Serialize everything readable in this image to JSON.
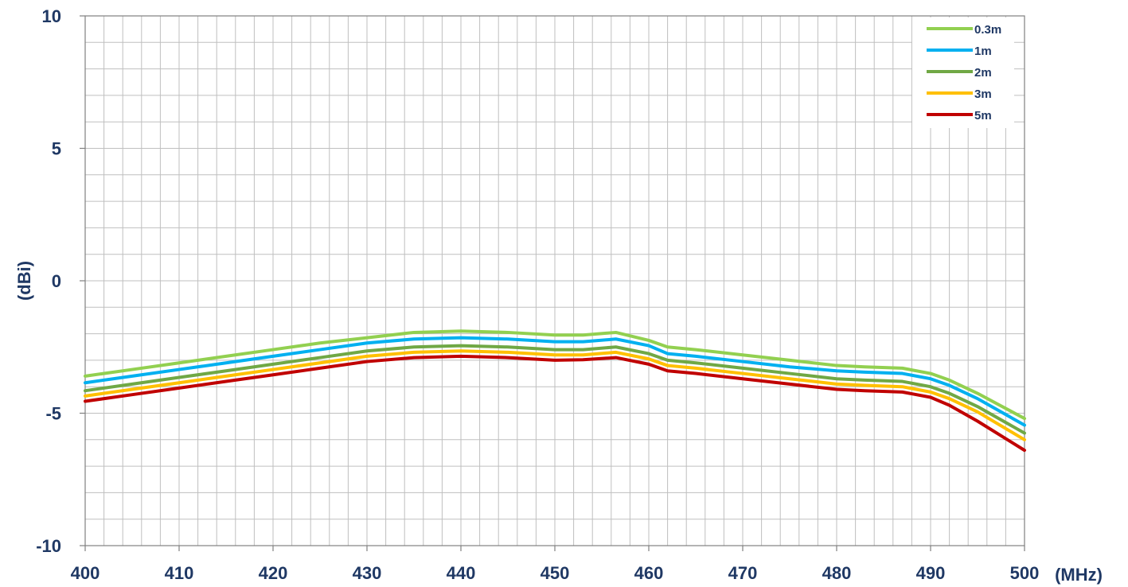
{
  "chart_data": {
    "type": "line",
    "title": "",
    "xlabel": "(MHz)",
    "ylabel": "(dBi)",
    "xlim": [
      400,
      500
    ],
    "ylim": [
      -10,
      10
    ],
    "x_ticks": [
      400,
      410,
      420,
      430,
      440,
      450,
      460,
      470,
      480,
      490,
      500
    ],
    "y_ticks": [
      10,
      5,
      0,
      -5,
      -10
    ],
    "y_tick_labels": [
      "10",
      "5",
      "0",
      "-5",
      "-10"
    ],
    "grid": true,
    "legend_position": "top-right",
    "x": [
      400,
      405,
      410,
      415,
      420,
      425,
      430,
      435,
      440,
      445,
      450,
      453,
      456.5,
      460,
      462,
      465,
      470,
      475,
      480,
      483,
      487,
      490,
      492,
      495,
      500
    ],
    "series": [
      {
        "name": "0.3m",
        "color": "#92D050",
        "values": [
          -3.6,
          -3.35,
          -3.1,
          -2.85,
          -2.6,
          -2.35,
          -2.15,
          -1.95,
          -1.9,
          -1.95,
          -2.05,
          -2.05,
          -1.95,
          -2.25,
          -2.5,
          -2.6,
          -2.8,
          -3.0,
          -3.2,
          -3.25,
          -3.3,
          -3.5,
          -3.75,
          -4.25,
          -5.2
        ]
      },
      {
        "name": "1m",
        "color": "#00B0F0",
        "values": [
          -3.85,
          -3.6,
          -3.35,
          -3.1,
          -2.85,
          -2.6,
          -2.35,
          -2.2,
          -2.15,
          -2.2,
          -2.3,
          -2.3,
          -2.2,
          -2.45,
          -2.75,
          -2.85,
          -3.05,
          -3.25,
          -3.4,
          -3.45,
          -3.5,
          -3.7,
          -3.95,
          -4.45,
          -5.45
        ]
      },
      {
        "name": "2m",
        "color": "#70A845",
        "values": [
          -4.15,
          -3.9,
          -3.65,
          -3.4,
          -3.15,
          -2.9,
          -2.65,
          -2.5,
          -2.45,
          -2.5,
          -2.6,
          -2.6,
          -2.5,
          -2.75,
          -3.0,
          -3.1,
          -3.3,
          -3.5,
          -3.7,
          -3.75,
          -3.8,
          -4.0,
          -4.25,
          -4.75,
          -5.75
        ]
      },
      {
        "name": "3m",
        "color": "#FFC000",
        "values": [
          -4.35,
          -4.1,
          -3.85,
          -3.6,
          -3.35,
          -3.1,
          -2.85,
          -2.7,
          -2.65,
          -2.7,
          -2.8,
          -2.8,
          -2.7,
          -2.95,
          -3.2,
          -3.3,
          -3.5,
          -3.7,
          -3.9,
          -3.95,
          -4.0,
          -4.2,
          -4.45,
          -4.95,
          -6.0
        ]
      },
      {
        "name": "5m",
        "color": "#C00000",
        "values": [
          -4.55,
          -4.3,
          -4.05,
          -3.8,
          -3.55,
          -3.3,
          -3.05,
          -2.9,
          -2.85,
          -2.9,
          -3.0,
          -2.98,
          -2.9,
          -3.15,
          -3.4,
          -3.5,
          -3.7,
          -3.9,
          -4.1,
          -4.15,
          -4.2,
          -4.4,
          -4.7,
          -5.3,
          -6.4
        ]
      }
    ]
  }
}
